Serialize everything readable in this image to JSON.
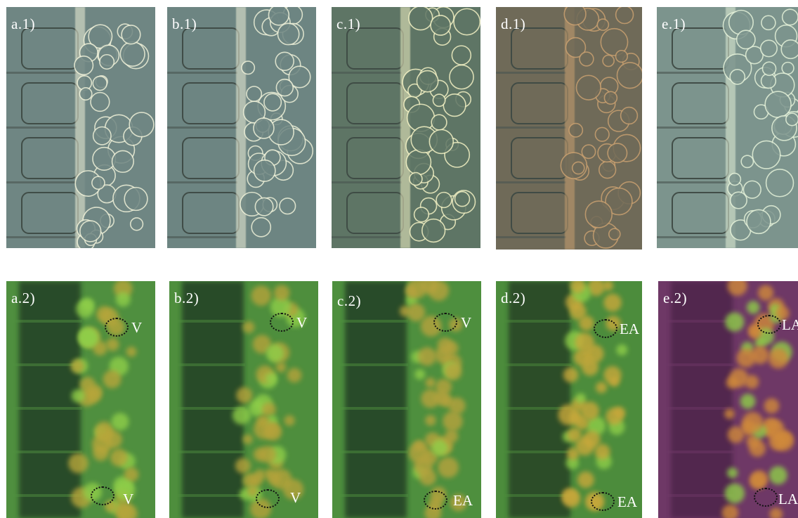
{
  "panels_top": [
    {
      "id": "a1",
      "label": "a.1)",
      "tone": "#6f8683",
      "light": "#eef0d8"
    },
    {
      "id": "b1",
      "label": "b.1)",
      "tone": "#6d8582",
      "light": "#edf0d8"
    },
    {
      "id": "c1",
      "label": "c.1)",
      "tone": "#5e7565",
      "light": "#f2f1c4"
    },
    {
      "id": "d1",
      "label": "d.1)",
      "tone": "#6f6a58",
      "light": "#c8a070"
    },
    {
      "id": "e1",
      "label": "e.1)",
      "tone": "#7c948d",
      "light": "#e4f1d9"
    }
  ],
  "panels_bottom": [
    {
      "id": "a2",
      "label": "a.2)",
      "bg": "#4f8f3f",
      "dark": "#1f3520",
      "cell": "#b7a63a",
      "annotations": [
        {
          "text": "V"
        },
        {
          "text": "V"
        }
      ]
    },
    {
      "id": "b2",
      "label": "b.2)",
      "bg": "#4e8e3d",
      "dark": "#1f3520",
      "cell": "#b5a33a",
      "annotations": [
        {
          "text": "V"
        },
        {
          "text": "V"
        }
      ]
    },
    {
      "id": "c2",
      "label": "c.2)",
      "bg": "#4e8f3e",
      "dark": "#1f3520",
      "cell": "#b7a33c",
      "annotations": [
        {
          "text": "V"
        },
        {
          "text": "EA"
        }
      ]
    },
    {
      "id": "d2",
      "label": "d.2)",
      "bg": "#4c8c3c",
      "dark": "#213722",
      "cell": "#c9a83a",
      "annotations": [
        {
          "text": "EA"
        },
        {
          "text": "EA"
        }
      ]
    },
    {
      "id": "e2",
      "label": "e.2)",
      "bg": "#6e3866",
      "dark": "#4a2046",
      "cell": "#d08a3a",
      "annotations": [
        {
          "text": "LA"
        },
        {
          "text": "LA"
        }
      ]
    }
  ]
}
